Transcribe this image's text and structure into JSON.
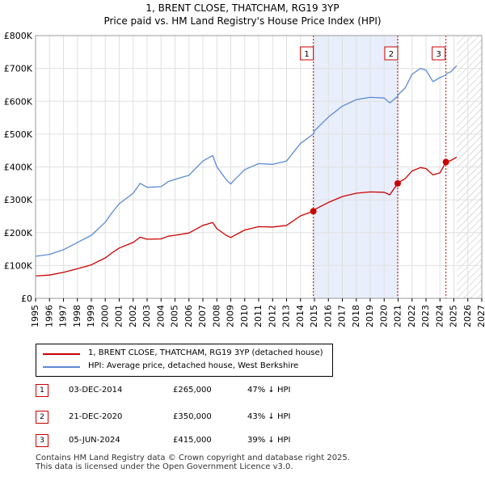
{
  "title_line1": "1, BRENT CLOSE, THATCHAM, RG19 3YP",
  "title_line2": "Price paid vs. HM Land Registry's House Price Index (HPI)",
  "legend": [
    {
      "label": "1, BRENT CLOSE, THATCHAM, RG19 3YP (detached house)",
      "color": "#cc0000"
    },
    {
      "label": "HPI: Average price, detached house, West Berkshire",
      "color": "#5b8bd0"
    }
  ],
  "sales": [
    {
      "num": "1",
      "date": "03-DEC-2014",
      "price": "£265,000",
      "hpi_note": "47% ↓ HPI"
    },
    {
      "num": "2",
      "date": "21-DEC-2020",
      "price": "£350,000",
      "hpi_note": "43% ↓ HPI"
    },
    {
      "num": "3",
      "date": "05-JUN-2024",
      "price": "£415,000",
      "hpi_note": "39% ↓ HPI"
    }
  ],
  "footer_line1": "Contains HM Land Registry data © Crown copyright and database right 2025.",
  "footer_line2": "This data is licensed under the Open Government Licence v3.0.",
  "chart_data": {
    "type": "line",
    "title": "1, BRENT CLOSE, THATCHAM, RG19 3YP — Price paid vs. HM Land Registry's House Price Index (HPI)",
    "xlabel": "",
    "ylabel": "",
    "xlim": [
      1995,
      2027
    ],
    "ylim": [
      0,
      800000
    ],
    "x_ticks": [
      1995,
      1996,
      1997,
      1998,
      1999,
      2000,
      2001,
      2002,
      2003,
      2004,
      2005,
      2006,
      2007,
      2008,
      2009,
      2010,
      2011,
      2012,
      2013,
      2014,
      2015,
      2016,
      2017,
      2018,
      2019,
      2020,
      2021,
      2022,
      2023,
      2024,
      2025,
      2026,
      2027
    ],
    "y_ticks": [
      0,
      100000,
      200000,
      300000,
      400000,
      500000,
      600000,
      700000,
      800000
    ],
    "y_tick_labels": [
      "£0",
      "£100K",
      "£200K",
      "£300K",
      "£400K",
      "£500K",
      "£600K",
      "£700K",
      "£800K"
    ],
    "grid": true,
    "colors": {
      "property": "#cc0000",
      "hpi": "#5b8bd0",
      "shade": "#e8eefb",
      "marker_line": "#cc0000"
    },
    "hatch_from": 2025.2,
    "series": [
      {
        "name": "HPI: Average price, detached house, West Berkshire",
        "x": [
          1995,
          1996,
          1997,
          1998,
          1999,
          2000,
          2000.5,
          2001,
          2002,
          2002.5,
          2003,
          2004,
          2004.5,
          2005,
          2006,
          2007,
          2007.7,
          2008,
          2008.7,
          2009,
          2009.2,
          2010,
          2011,
          2012,
          2013,
          2014,
          2014.92,
          2015,
          2016,
          2017,
          2018,
          2019,
          2020,
          2020.4,
          2020.97,
          2021,
          2021.5,
          2022,
          2022.6,
          2023,
          2023.5,
          2024,
          2024.43,
          2024.5,
          2024.8,
          2025,
          2025.2
        ],
        "values": [
          128000,
          134000,
          148000,
          170000,
          192000,
          232000,
          262000,
          288000,
          320000,
          350000,
          338000,
          340000,
          355000,
          362000,
          375000,
          418000,
          435000,
          400000,
          360000,
          348000,
          358000,
          392000,
          410000,
          408000,
          418000,
          472000,
          500000,
          510000,
          552000,
          585000,
          605000,
          612000,
          610000,
          595000,
          615000,
          620000,
          640000,
          682000,
          700000,
          695000,
          660000,
          672000,
          680000,
          685000,
          690000,
          700000,
          708000
        ]
      },
      {
        "name": "1, BRENT CLOSE, THATCHAM, RG19 3YP (detached house)",
        "x": [
          1995,
          1996,
          1997,
          1998,
          1999,
          2000,
          2000.5,
          2001,
          2002,
          2002.5,
          2003,
          2004,
          2004.5,
          2005,
          2006,
          2007,
          2007.7,
          2008,
          2008.7,
          2009,
          2009.2,
          2010,
          2011,
          2012,
          2013,
          2014,
          2014.92,
          2015,
          2016,
          2017,
          2018,
          2019,
          2020,
          2020.4,
          2020.97,
          2021,
          2021.5,
          2022,
          2022.6,
          2023,
          2023.5,
          2024,
          2024.43,
          2024.5,
          2024.8,
          2025,
          2025.2
        ],
        "values": [
          68000,
          71000,
          79000,
          90000,
          102000,
          123000,
          139000,
          153000,
          170000,
          186000,
          180000,
          181000,
          189000,
          192000,
          199000,
          222000,
          231000,
          212000,
          191000,
          185000,
          190000,
          208000,
          218000,
          217000,
          222000,
          251000,
          265000,
          270000,
          292000,
          310000,
          320000,
          324000,
          323000,
          315000,
          350000,
          352000,
          364000,
          388000,
          398000,
          395000,
          376000,
          382000,
          415000,
          416000,
          420000,
          425000,
          430000
        ]
      }
    ],
    "sales_points": [
      {
        "label": "1",
        "x": 2014.92,
        "y": 265000
      },
      {
        "label": "2",
        "x": 2020.97,
        "y": 350000
      },
      {
        "label": "3",
        "x": 2024.43,
        "y": 415000
      }
    ]
  }
}
